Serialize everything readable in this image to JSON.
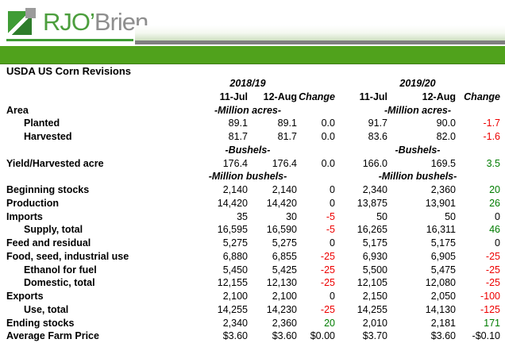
{
  "logo": {
    "green_text": "RJO’",
    "gray_text": "Brien"
  },
  "title": "USDA US Corn Revisions",
  "colors": {
    "bar_green": "#50a21c",
    "logo_green": "#4c9e3d",
    "logo_gray": "#8e8e8e",
    "stripe_gray": "#7f7f7f",
    "negative_red": "#ed0000",
    "positive_green": "#007c00"
  },
  "table": {
    "year_headers": [
      "2018/19",
      "2019/20"
    ],
    "column_headers": [
      "11-Jul",
      "12-Aug",
      "Change",
      "11-Jul",
      "12-Aug",
      "Change"
    ],
    "rows": [
      {
        "label": "Area",
        "indent": 0,
        "unit": "-Million acres-"
      },
      {
        "label": "Planted",
        "indent": 1,
        "cells": [
          [
            "89.1",
            "k"
          ],
          [
            "89.1",
            "k"
          ],
          [
            "0.0",
            "k"
          ],
          [
            "91.7",
            "k"
          ],
          [
            "90.0",
            "k"
          ],
          [
            "-1.7",
            "r"
          ]
        ]
      },
      {
        "label": "Harvested",
        "indent": 1,
        "cells": [
          [
            "81.7",
            "k"
          ],
          [
            "81.7",
            "k"
          ],
          [
            "0.0",
            "k"
          ],
          [
            "83.6",
            "k"
          ],
          [
            "82.0",
            "k"
          ],
          [
            "-1.6",
            "r"
          ]
        ]
      },
      {
        "label": "",
        "indent": 0,
        "unit": "-Bushels-"
      },
      {
        "label": "Yield/Harvested acre",
        "indent": 0,
        "cells": [
          [
            "176.4",
            "k"
          ],
          [
            "176.4",
            "k"
          ],
          [
            "0.0",
            "k"
          ],
          [
            "166.0",
            "k"
          ],
          [
            "169.5",
            "k"
          ],
          [
            "3.5",
            "g"
          ]
        ]
      },
      {
        "label": "",
        "indent": 0,
        "unit": "-Million bushels-"
      },
      {
        "label": "Beginning stocks",
        "indent": 0,
        "cells": [
          [
            "2,140",
            "k"
          ],
          [
            "2,140",
            "k"
          ],
          [
            "0",
            "k"
          ],
          [
            "2,340",
            "k"
          ],
          [
            "2,360",
            "k"
          ],
          [
            "20",
            "g"
          ]
        ]
      },
      {
        "label": "Production",
        "indent": 0,
        "cells": [
          [
            "14,420",
            "k"
          ],
          [
            "14,420",
            "k"
          ],
          [
            "0",
            "k"
          ],
          [
            "13,875",
            "k"
          ],
          [
            "13,901",
            "k"
          ],
          [
            "26",
            "g"
          ]
        ]
      },
      {
        "label": "Imports",
        "indent": 0,
        "cells": [
          [
            "35",
            "k"
          ],
          [
            "30",
            "k"
          ],
          [
            "-5",
            "r"
          ],
          [
            "50",
            "k"
          ],
          [
            "50",
            "k"
          ],
          [
            "0",
            "k"
          ]
        ]
      },
      {
        "label": "Supply, total",
        "indent": 1,
        "cells": [
          [
            "16,595",
            "k"
          ],
          [
            "16,590",
            "k"
          ],
          [
            "-5",
            "r"
          ],
          [
            "16,265",
            "k"
          ],
          [
            "16,311",
            "k"
          ],
          [
            "46",
            "g"
          ]
        ]
      },
      {
        "label": "Feed and residual",
        "indent": 0,
        "cells": [
          [
            "5,275",
            "k"
          ],
          [
            "5,275",
            "k"
          ],
          [
            "0",
            "k"
          ],
          [
            "5,175",
            "k"
          ],
          [
            "5,175",
            "k"
          ],
          [
            "0",
            "k"
          ]
        ]
      },
      {
        "label": "Food, seed, industrial use",
        "indent": 0,
        "cells": [
          [
            "6,880",
            "k"
          ],
          [
            "6,855",
            "k"
          ],
          [
            "-25",
            "r"
          ],
          [
            "6,930",
            "k"
          ],
          [
            "6,905",
            "k"
          ],
          [
            "-25",
            "r"
          ]
        ]
      },
      {
        "label": "Ethanol for fuel",
        "indent": 1,
        "cells": [
          [
            "5,450",
            "k"
          ],
          [
            "5,425",
            "k"
          ],
          [
            "-25",
            "r"
          ],
          [
            "5,500",
            "k"
          ],
          [
            "5,475",
            "k"
          ],
          [
            "-25",
            "r"
          ]
        ]
      },
      {
        "label": "Domestic, total",
        "indent": 1,
        "cells": [
          [
            "12,155",
            "k"
          ],
          [
            "12,130",
            "k"
          ],
          [
            "-25",
            "r"
          ],
          [
            "12,105",
            "k"
          ],
          [
            "12,080",
            "k"
          ],
          [
            "-25",
            "r"
          ]
        ]
      },
      {
        "label": "Exports",
        "indent": 0,
        "cells": [
          [
            "2,100",
            "k"
          ],
          [
            "2,100",
            "k"
          ],
          [
            "0",
            "k"
          ],
          [
            "2,150",
            "k"
          ],
          [
            "2,050",
            "k"
          ],
          [
            "-100",
            "r"
          ]
        ]
      },
      {
        "label": "Use, total",
        "indent": 1,
        "cells": [
          [
            "14,255",
            "k"
          ],
          [
            "14,230",
            "k"
          ],
          [
            "-25",
            "r"
          ],
          [
            "14,255",
            "k"
          ],
          [
            "14,130",
            "k"
          ],
          [
            "-125",
            "r"
          ]
        ]
      },
      {
        "label": "Ending stocks",
        "indent": 0,
        "cells": [
          [
            "2,340",
            "k"
          ],
          [
            "2,360",
            "k"
          ],
          [
            "20",
            "g"
          ],
          [
            "2,010",
            "k"
          ],
          [
            "2,181",
            "k"
          ],
          [
            "171",
            "g"
          ]
        ]
      },
      {
        "label": "Average Farm Price",
        "indent": 0,
        "cells": [
          [
            "$3.60",
            "k"
          ],
          [
            "$3.60",
            "k"
          ],
          [
            "$0.00",
            "k"
          ],
          [
            "$3.70",
            "k"
          ],
          [
            "$3.60",
            "k"
          ],
          [
            "-$0.10",
            "k"
          ]
        ]
      }
    ]
  }
}
